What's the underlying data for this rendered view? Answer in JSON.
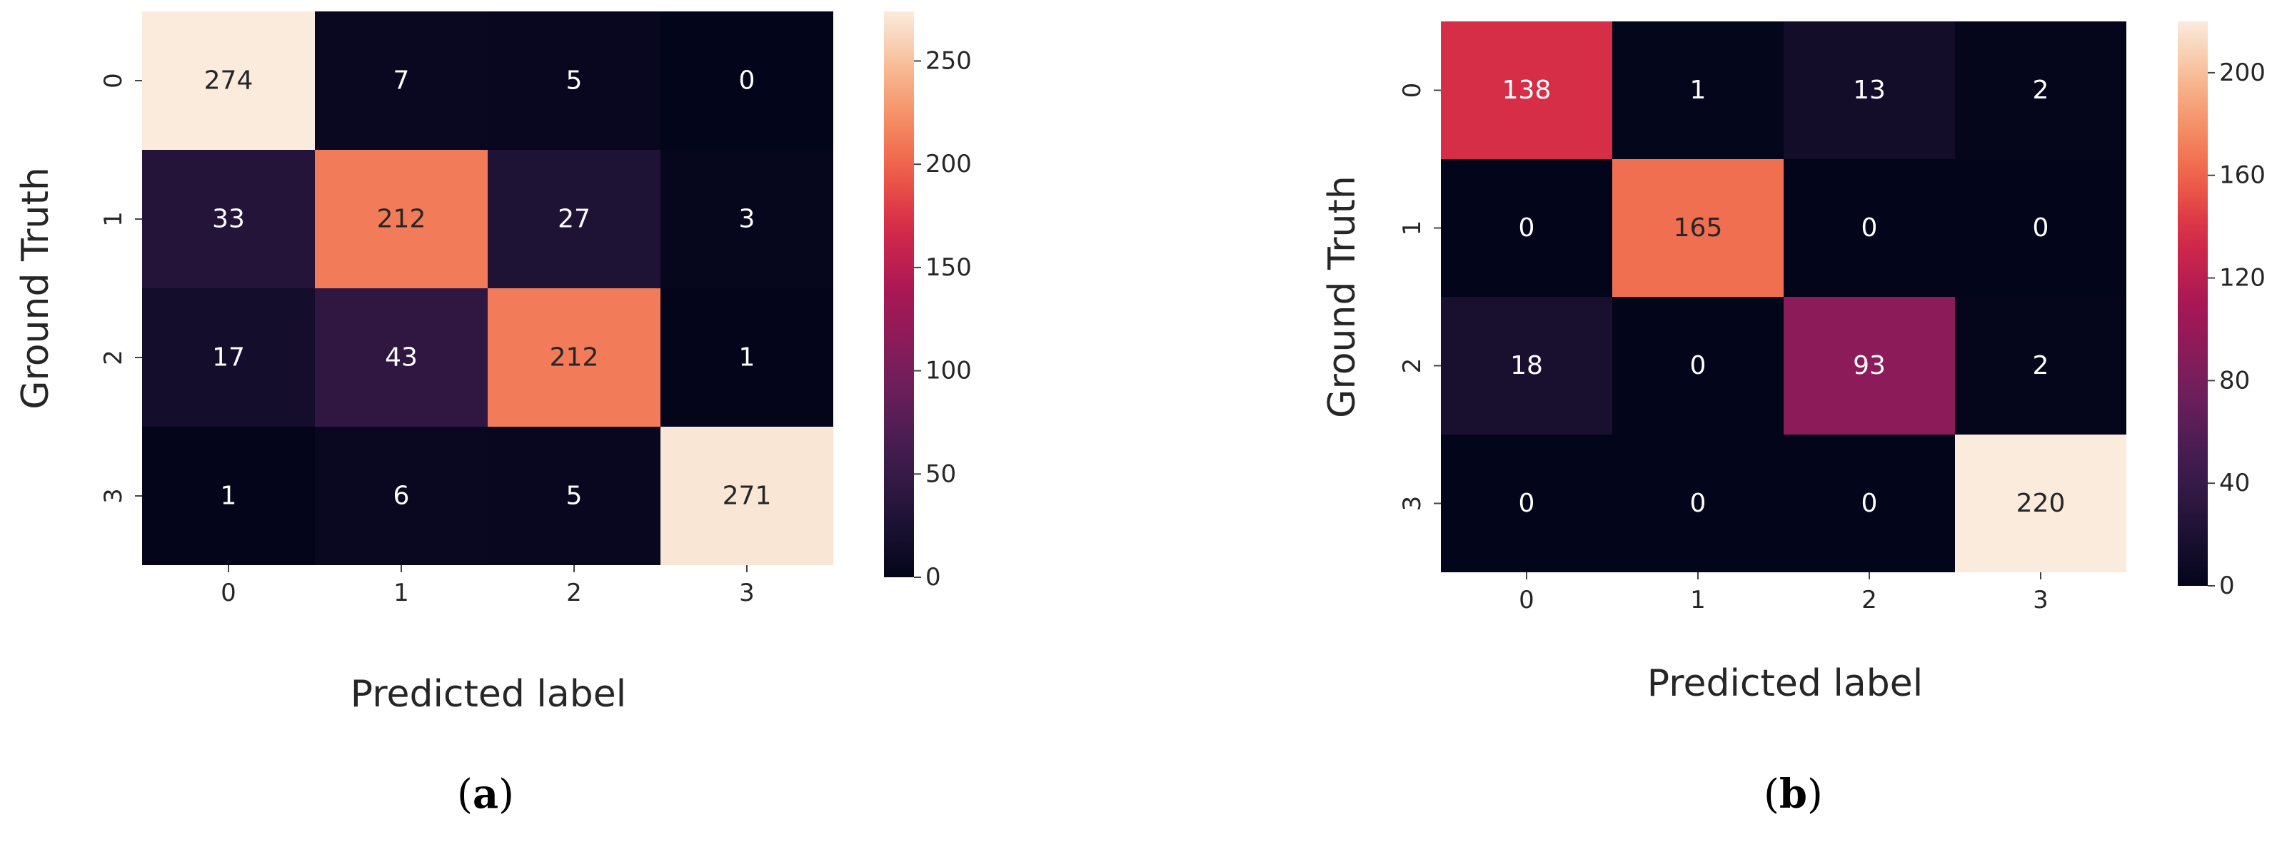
{
  "figure": {
    "panels": [
      {
        "id": "a",
        "caption_open": "(",
        "caption_letter": "a",
        "caption_close": ")"
      },
      {
        "id": "b",
        "caption_open": "(",
        "caption_letter": "b",
        "caption_close": ")"
      }
    ]
  },
  "chart_data": [
    {
      "type": "heatmap",
      "panel": "a",
      "title": "",
      "xlabel": "Predicted label",
      "ylabel": "Ground Truth",
      "x_categories": [
        "0",
        "1",
        "2",
        "3"
      ],
      "y_categories": [
        "0",
        "1",
        "2",
        "3"
      ],
      "values": [
        [
          274,
          7,
          5,
          0
        ],
        [
          33,
          212,
          27,
          3
        ],
        [
          17,
          43,
          212,
          1
        ],
        [
          1,
          6,
          5,
          271
        ]
      ],
      "colorbar": {
        "min": 0,
        "max": 274,
        "ticks": [
          0,
          50,
          100,
          150,
          200,
          250
        ]
      },
      "colormap": "rocket",
      "grid": false
    },
    {
      "type": "heatmap",
      "panel": "b",
      "title": "",
      "xlabel": "Predicted label",
      "ylabel": "Ground Truth",
      "x_categories": [
        "0",
        "1",
        "2",
        "3"
      ],
      "y_categories": [
        "0",
        "1",
        "2",
        "3"
      ],
      "values": [
        [
          138,
          1,
          13,
          2
        ],
        [
          0,
          165,
          0,
          0
        ],
        [
          18,
          0,
          93,
          2
        ],
        [
          0,
          0,
          0,
          220
        ]
      ],
      "colorbar": {
        "min": 0,
        "max": 220,
        "ticks": [
          0,
          40,
          80,
          120,
          160,
          200
        ]
      },
      "colormap": "rocket",
      "grid": false
    }
  ]
}
